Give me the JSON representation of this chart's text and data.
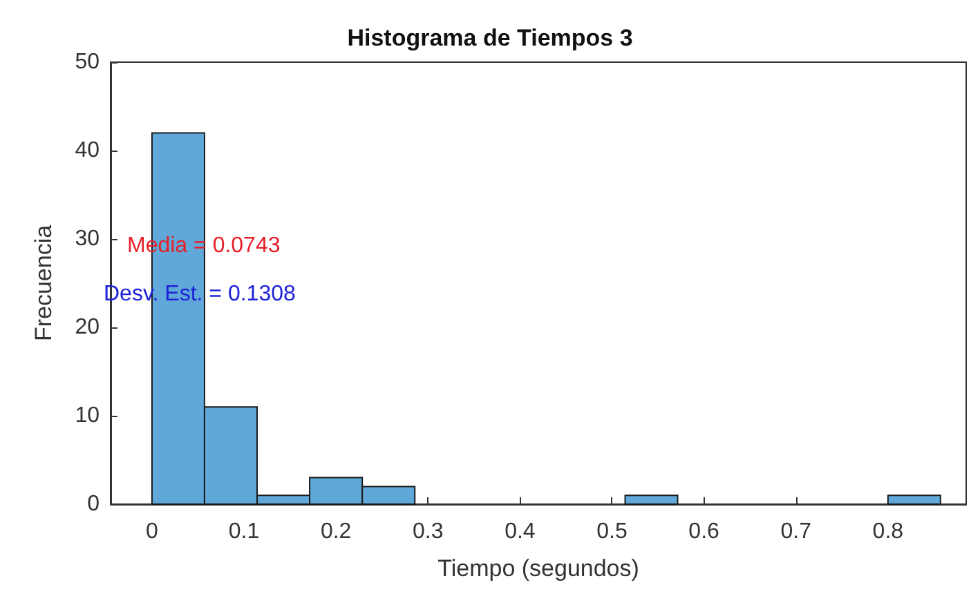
{
  "chart_data": {
    "type": "histogram",
    "title": "Histograma de Tiempos 3",
    "xlabel": "Tiempo (segundos)",
    "ylabel": "Frecuencia",
    "bins": [
      0,
      0.0571,
      0.1143,
      0.1714,
      0.2286,
      0.2857,
      0.3429,
      0.4,
      0.4571,
      0.5143,
      0.5714,
      0.6286,
      0.6857,
      0.7429,
      0.8,
      0.8571
    ],
    "values": [
      42,
      11,
      1,
      3,
      2,
      0,
      0,
      0,
      0,
      1,
      0,
      0,
      0,
      0,
      1
    ],
    "color": "#5fa8d9",
    "xlim": [
      -0.045,
      0.885
    ],
    "xticks": [
      0,
      0.1,
      0.2,
      0.3,
      0.4,
      0.5,
      0.6,
      0.7,
      0.8
    ],
    "ylim": [
      0,
      50
    ],
    "yticks": [
      0,
      10,
      20,
      30,
      40,
      50
    ],
    "annotations": [
      "Media = 0.0743",
      "Desv. Est. = 0.1308"
    ],
    "grid": false
  }
}
